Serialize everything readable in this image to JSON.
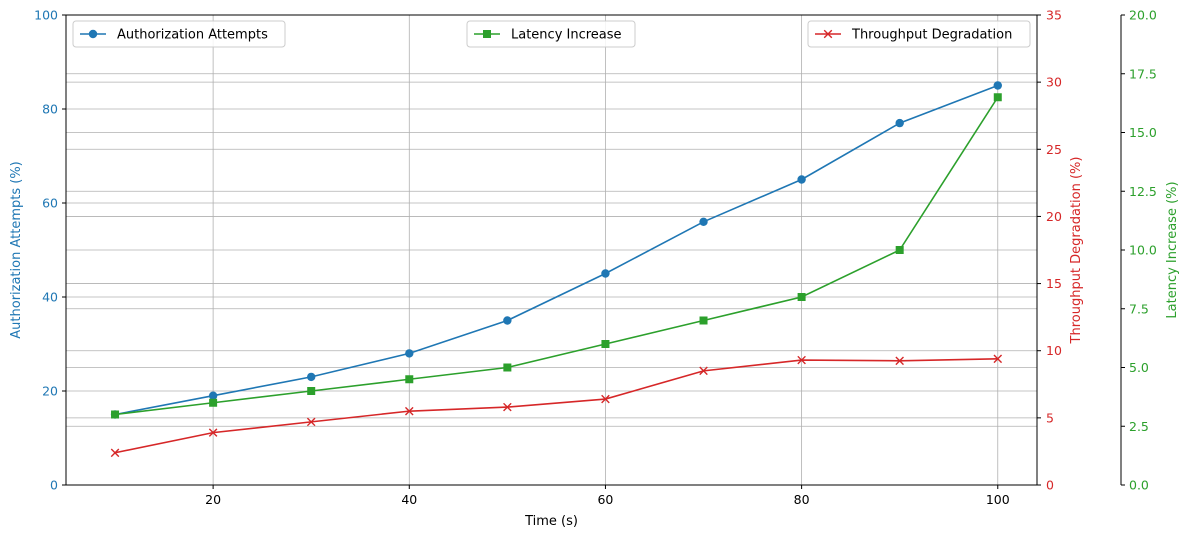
{
  "chart_data": {
    "type": "line",
    "x": [
      10,
      20,
      30,
      40,
      50,
      60,
      70,
      80,
      90,
      100
    ],
    "xlabel": "Time (s)",
    "xticks": [
      20,
      40,
      60,
      80,
      100
    ],
    "xlim": [
      5,
      104
    ],
    "grid": true,
    "series": [
      {
        "name": "Authorization Attempts",
        "axis": "left",
        "color": "#1f77b4",
        "marker": "circle",
        "values": [
          15,
          19,
          23,
          28,
          35,
          45,
          56,
          65,
          77,
          85
        ]
      },
      {
        "name": "Latency Increase",
        "axis": "right-outer",
        "color": "#2ca02c",
        "marker": "square",
        "values": [
          3,
          3.5,
          4,
          4.5,
          5,
          6,
          7,
          8,
          10,
          16.5
        ]
      },
      {
        "name": "Throughput Degradation",
        "axis": "right-inner",
        "color": "#d62728",
        "marker": "x",
        "values": [
          2.4,
          3.9,
          4.7,
          5.5,
          5.8,
          6.4,
          8.5,
          9.3,
          9.25,
          9.4
        ]
      }
    ],
    "axes": {
      "left": {
        "label": "Authorization Attempts (%)",
        "ylim": [
          0,
          100
        ],
        "ticks": [
          "0",
          "20",
          "40",
          "60",
          "80",
          "100"
        ],
        "color": "#1f77b4"
      },
      "right_inner": {
        "label": "Throughput Degradation (%)",
        "ylim": [
          0,
          35
        ],
        "ticks": [
          "0",
          "5",
          "10",
          "15",
          "20",
          "25",
          "30",
          "35"
        ],
        "color": "#d62728"
      },
      "right_outer": {
        "label": "Latency Increase (%)",
        "ylim": [
          0,
          20
        ],
        "ticks": [
          "0.0",
          "2.5",
          "5.0",
          "7.5",
          "10.0",
          "12.5",
          "15.0",
          "17.5",
          "20.0"
        ],
        "color": "#2ca02c"
      }
    },
    "legends": [
      {
        "series": "Authorization Attempts",
        "placement": "upper-left"
      },
      {
        "series": "Latency Increase",
        "placement": "upper-center"
      },
      {
        "series": "Throughput Degradation",
        "placement": "upper-right"
      }
    ]
  }
}
